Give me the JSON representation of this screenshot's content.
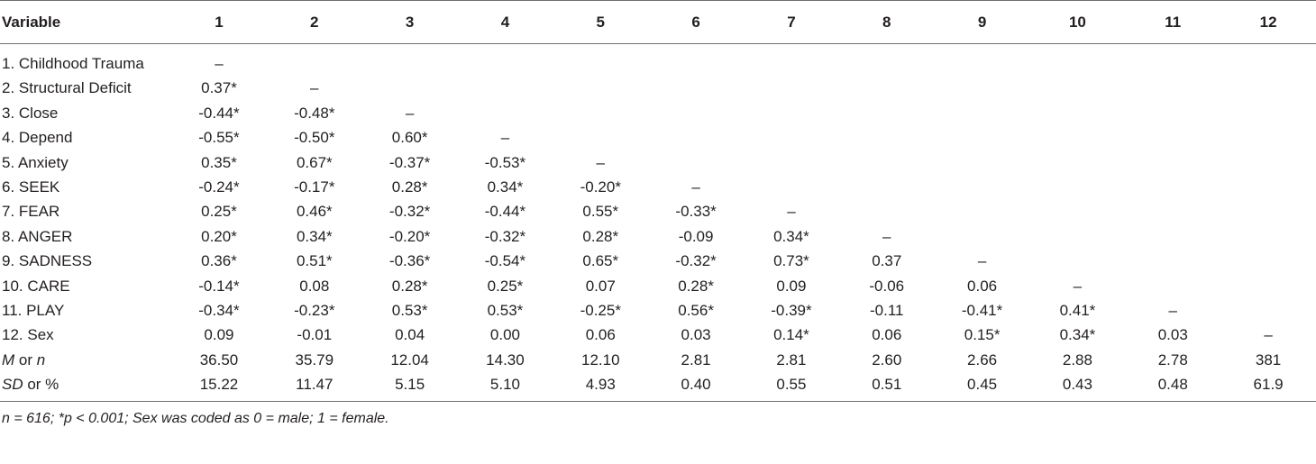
{
  "table": {
    "header": {
      "variable_label": "Variable",
      "columns": [
        "1",
        "2",
        "3",
        "4",
        "5",
        "6",
        "7",
        "8",
        "9",
        "10",
        "11",
        "12"
      ]
    },
    "rows": [
      {
        "label": "1. Childhood Trauma",
        "cells": [
          "–",
          "",
          "",
          "",
          "",
          "",
          "",
          "",
          "",
          "",
          "",
          ""
        ]
      },
      {
        "label": "2. Structural Deficit",
        "cells": [
          "0.37*",
          "–",
          "",
          "",
          "",
          "",
          "",
          "",
          "",
          "",
          "",
          ""
        ]
      },
      {
        "label": "3. Close",
        "cells": [
          "-0.44*",
          "-0.48*",
          "–",
          "",
          "",
          "",
          "",
          "",
          "",
          "",
          "",
          ""
        ]
      },
      {
        "label": "4. Depend",
        "cells": [
          "-0.55*",
          "-0.50*",
          "0.60*",
          "–",
          "",
          "",
          "",
          "",
          "",
          "",
          "",
          ""
        ]
      },
      {
        "label": "5. Anxiety",
        "cells": [
          "0.35*",
          "0.67*",
          "-0.37*",
          "-0.53*",
          "–",
          "",
          "",
          "",
          "",
          "",
          "",
          ""
        ]
      },
      {
        "label": "6. SEEK",
        "cells": [
          "-0.24*",
          "-0.17*",
          "0.28*",
          "0.34*",
          "-0.20*",
          "–",
          "",
          "",
          "",
          "",
          "",
          ""
        ]
      },
      {
        "label": "7. FEAR",
        "cells": [
          "0.25*",
          "0.46*",
          "-0.32*",
          "-0.44*",
          "0.55*",
          "-0.33*",
          "–",
          "",
          "",
          "",
          "",
          ""
        ]
      },
      {
        "label": "8. ANGER",
        "cells": [
          "0.20*",
          "0.34*",
          "-0.20*",
          "-0.32*",
          "0.28*",
          "-0.09",
          "0.34*",
          "–",
          "",
          "",
          "",
          ""
        ]
      },
      {
        "label": "9. SADNESS",
        "cells": [
          "0.36*",
          "0.51*",
          "-0.36*",
          "-0.54*",
          "0.65*",
          "-0.32*",
          "0.73*",
          "0.37",
          "–",
          "",
          "",
          ""
        ]
      },
      {
        "label": "10. CARE",
        "cells": [
          "-0.14*",
          "0.08",
          "0.28*",
          "0.25*",
          "0.07",
          "0.28*",
          "0.09",
          "-0.06",
          "0.06",
          "–",
          "",
          ""
        ]
      },
      {
        "label": "11. PLAY",
        "cells": [
          "-0.34*",
          "-0.23*",
          "0.53*",
          "0.53*",
          "-0.25*",
          "0.56*",
          "-0.39*",
          "-0.11",
          "-0.41*",
          "0.41*",
          "–",
          ""
        ]
      },
      {
        "label": "12. Sex",
        "cells": [
          "0.09",
          "-0.01",
          "0.04",
          "0.00",
          "0.06",
          "0.03",
          "0.14*",
          "0.06",
          "0.15*",
          "0.34*",
          "0.03",
          "–"
        ]
      }
    ],
    "summary_rows": [
      {
        "label_italic": "M",
        "label_rest": " or ",
        "label_italic2": "n",
        "cells": [
          "36.50",
          "35.79",
          "12.04",
          "14.30",
          "12.10",
          "2.81",
          "2.81",
          "2.60",
          "2.66",
          "2.88",
          "2.78",
          "381"
        ]
      },
      {
        "label_italic": "SD",
        "label_rest": " or %",
        "label_italic2": "",
        "cells": [
          "15.22",
          "11.47",
          "5.15",
          "5.10",
          "4.93",
          "0.40",
          "0.55",
          "0.51",
          "0.45",
          "0.43",
          "0.48",
          "61.9"
        ]
      }
    ]
  },
  "note": "n = 616; *p < 0.001; Sex was coded as 0 = male; 1 = female."
}
